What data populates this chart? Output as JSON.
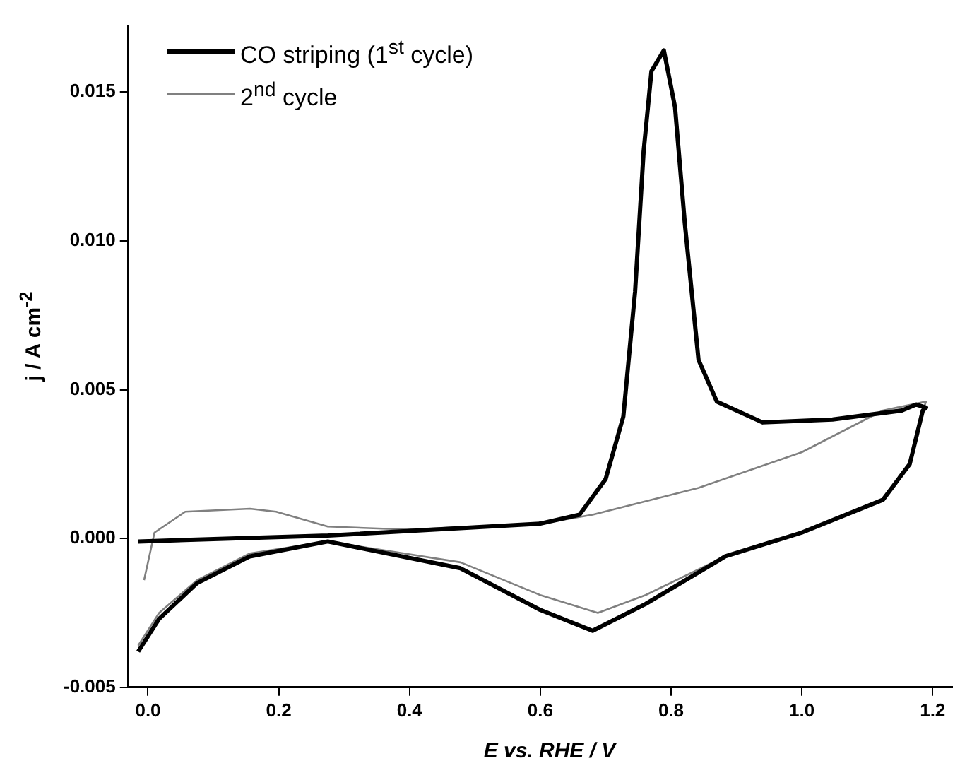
{
  "chart_data": {
    "type": "line",
    "xlabel": "E vs. RHE / V",
    "ylabel": "j / A cm$^{-2}$",
    "xlim": [
      -0.03,
      1.23
    ],
    "ylim": [
      -0.005,
      0.0172
    ],
    "xticks": [
      {
        "value": 0,
        "label": "0.0"
      },
      0.2,
      0.4,
      0.6,
      0.8,
      {
        "value": 1,
        "label": "1.0"
      },
      1.2
    ],
    "yticks": [
      -0.005,
      {
        "value": 0,
        "label": "0.000"
      },
      0.005,
      {
        "value": 0.01,
        "label": "0.010"
      },
      0.015
    ],
    "grid": false,
    "legend": "top left",
    "marker": "none",
    "line_style": "solid",
    "series": [
      {
        "name": "CO striping (1$^{st}$ cycle)",
        "color": "#000000",
        "x": [
          -0.015,
          0.275,
          0.6,
          0.66,
          0.7,
          0.727,
          0.745,
          0.758,
          0.77,
          0.789,
          0.806,
          0.821,
          0.842,
          0.87,
          0.94,
          1.047,
          1.153,
          1.175,
          1.19,
          1.185,
          1.165,
          1.124,
          1.0,
          0.883,
          0.761,
          0.68,
          0.6,
          0.478,
          0.275,
          0.156,
          0.075,
          0.017,
          -0.015
        ],
        "values": [
          -0.0001,
          0.0001,
          0.0005,
          0.0008,
          0.002,
          0.0041,
          0.0083,
          0.013,
          0.0157,
          0.0164,
          0.0145,
          0.0106,
          0.006,
          0.0046,
          0.0039,
          0.004,
          0.0043,
          0.0045,
          0.0044,
          0.0043,
          0.0025,
          0.0013,
          0.0002,
          -0.0006,
          -0.0022,
          -0.0031,
          -0.0024,
          -0.001,
          -0.0001,
          -0.0006,
          -0.0015,
          -0.0027,
          -0.0038
        ]
      },
      {
        "name": "2$^{nd}$ cycle",
        "color": "#808080",
        "x": [
          -0.006,
          0.01,
          0.057,
          0.156,
          0.196,
          0.275,
          0.396,
          0.6,
          0.68,
          0.842,
          1.0,
          1.124,
          1.19,
          1.185,
          1.165,
          1.124,
          1.0,
          0.883,
          0.761,
          0.688,
          0.6,
          0.478,
          0.275,
          0.156,
          0.075,
          0.017,
          -0.015
        ],
        "values": [
          -0.0014,
          0.0002,
          0.0009,
          0.001,
          0.0009,
          0.0004,
          0.0003,
          0.0005,
          0.0008,
          0.0017,
          0.0029,
          0.0043,
          0.0046,
          0.0043,
          0.0025,
          0.0013,
          0.0002,
          -0.0006,
          -0.0019,
          -0.0025,
          -0.0019,
          -0.0008,
          -0.0001,
          -0.0005,
          -0.0014,
          -0.0025,
          -0.0036
        ]
      }
    ]
  }
}
